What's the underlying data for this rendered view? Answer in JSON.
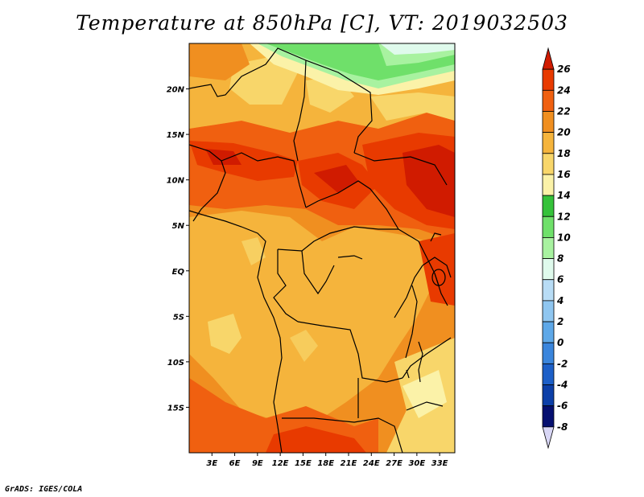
{
  "title": "Temperature at 850hPa [C], VT: 2019032503",
  "credit": "GrADS: IGES/COLA",
  "map": {
    "variable": "Temperature at 850hPa",
    "units": "C",
    "valid_time": "2019032503",
    "lon_range": [
      0,
      35
    ],
    "lat_range": [
      -20,
      25
    ],
    "lon_ticks": [
      "3E",
      "6E",
      "9E",
      "12E",
      "15E",
      "18E",
      "21E",
      "24E",
      "27E",
      "30E",
      "33E"
    ],
    "lat_ticks": [
      "20N",
      "15N",
      "10N",
      "5N",
      "EQ",
      "5S",
      "10S",
      "15S"
    ],
    "lon_tick_values": [
      3,
      6,
      9,
      12,
      15,
      18,
      21,
      24,
      27,
      30,
      33
    ],
    "lat_tick_values": [
      20,
      15,
      10,
      5,
      0,
      -5,
      -10,
      -15
    ]
  },
  "colorbar": {
    "labels": [
      "26",
      "24",
      "22",
      "20",
      "18",
      "16",
      "14",
      "12",
      "10",
      "8",
      "6",
      "4",
      "2",
      "0",
      "-2",
      "-4",
      "-6",
      "-8"
    ],
    "colors": [
      "#d01b00",
      "#e83a00",
      "#f06010",
      "#f08f20",
      "#f5b43c",
      "#f8d66a",
      "#fbf2a8",
      "#35c23a",
      "#6fe06a",
      "#a8f2a0",
      "#dffaec",
      "#b8dcf5",
      "#8fc6f0",
      "#5ea8e8",
      "#3a85dc",
      "#1c5fc8",
      "#0c3fa8",
      "#050f70",
      "#d8d6f5"
    ]
  }
}
